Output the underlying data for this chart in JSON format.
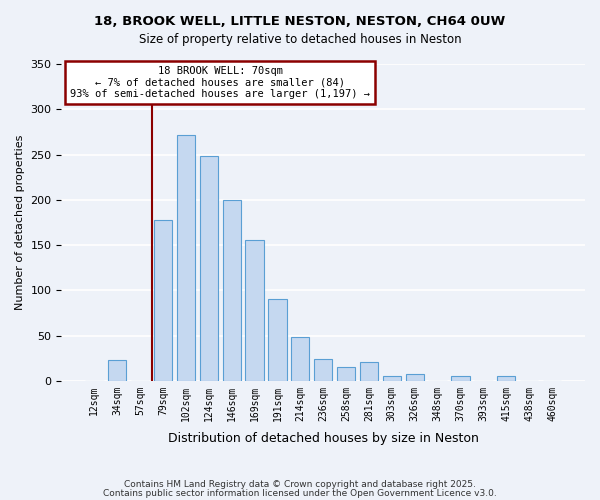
{
  "title1": "18, BROOK WELL, LITTLE NESTON, NESTON, CH64 0UW",
  "title2": "Size of property relative to detached houses in Neston",
  "xlabel": "Distribution of detached houses by size in Neston",
  "ylabel": "Number of detached properties",
  "bar_labels": [
    "12sqm",
    "34sqm",
    "57sqm",
    "79sqm",
    "102sqm",
    "124sqm",
    "146sqm",
    "169sqm",
    "191sqm",
    "214sqm",
    "236sqm",
    "258sqm",
    "281sqm",
    "303sqm",
    "326sqm",
    "348sqm",
    "370sqm",
    "393sqm",
    "415sqm",
    "438sqm",
    "460sqm"
  ],
  "bar_values": [
    0,
    23,
    0,
    178,
    272,
    248,
    200,
    155,
    90,
    48,
    24,
    15,
    21,
    5,
    8,
    0,
    5,
    0,
    5,
    0,
    0
  ],
  "bar_color": "#c5d8f0",
  "bar_edge_color": "#5a9fd4",
  "ylim": [
    0,
    350
  ],
  "yticks": [
    0,
    50,
    100,
    150,
    200,
    250,
    300,
    350
  ],
  "annotation_box_text": "18 BROOK WELL: 70sqm\n← 7% of detached houses are smaller (84)\n93% of semi-detached houses are larger (1,197) →",
  "vline_x": 2.5,
  "background_color": "#eef2f9",
  "footer1": "Contains HM Land Registry data © Crown copyright and database right 2025.",
  "footer2": "Contains public sector information licensed under the Open Government Licence v3.0."
}
